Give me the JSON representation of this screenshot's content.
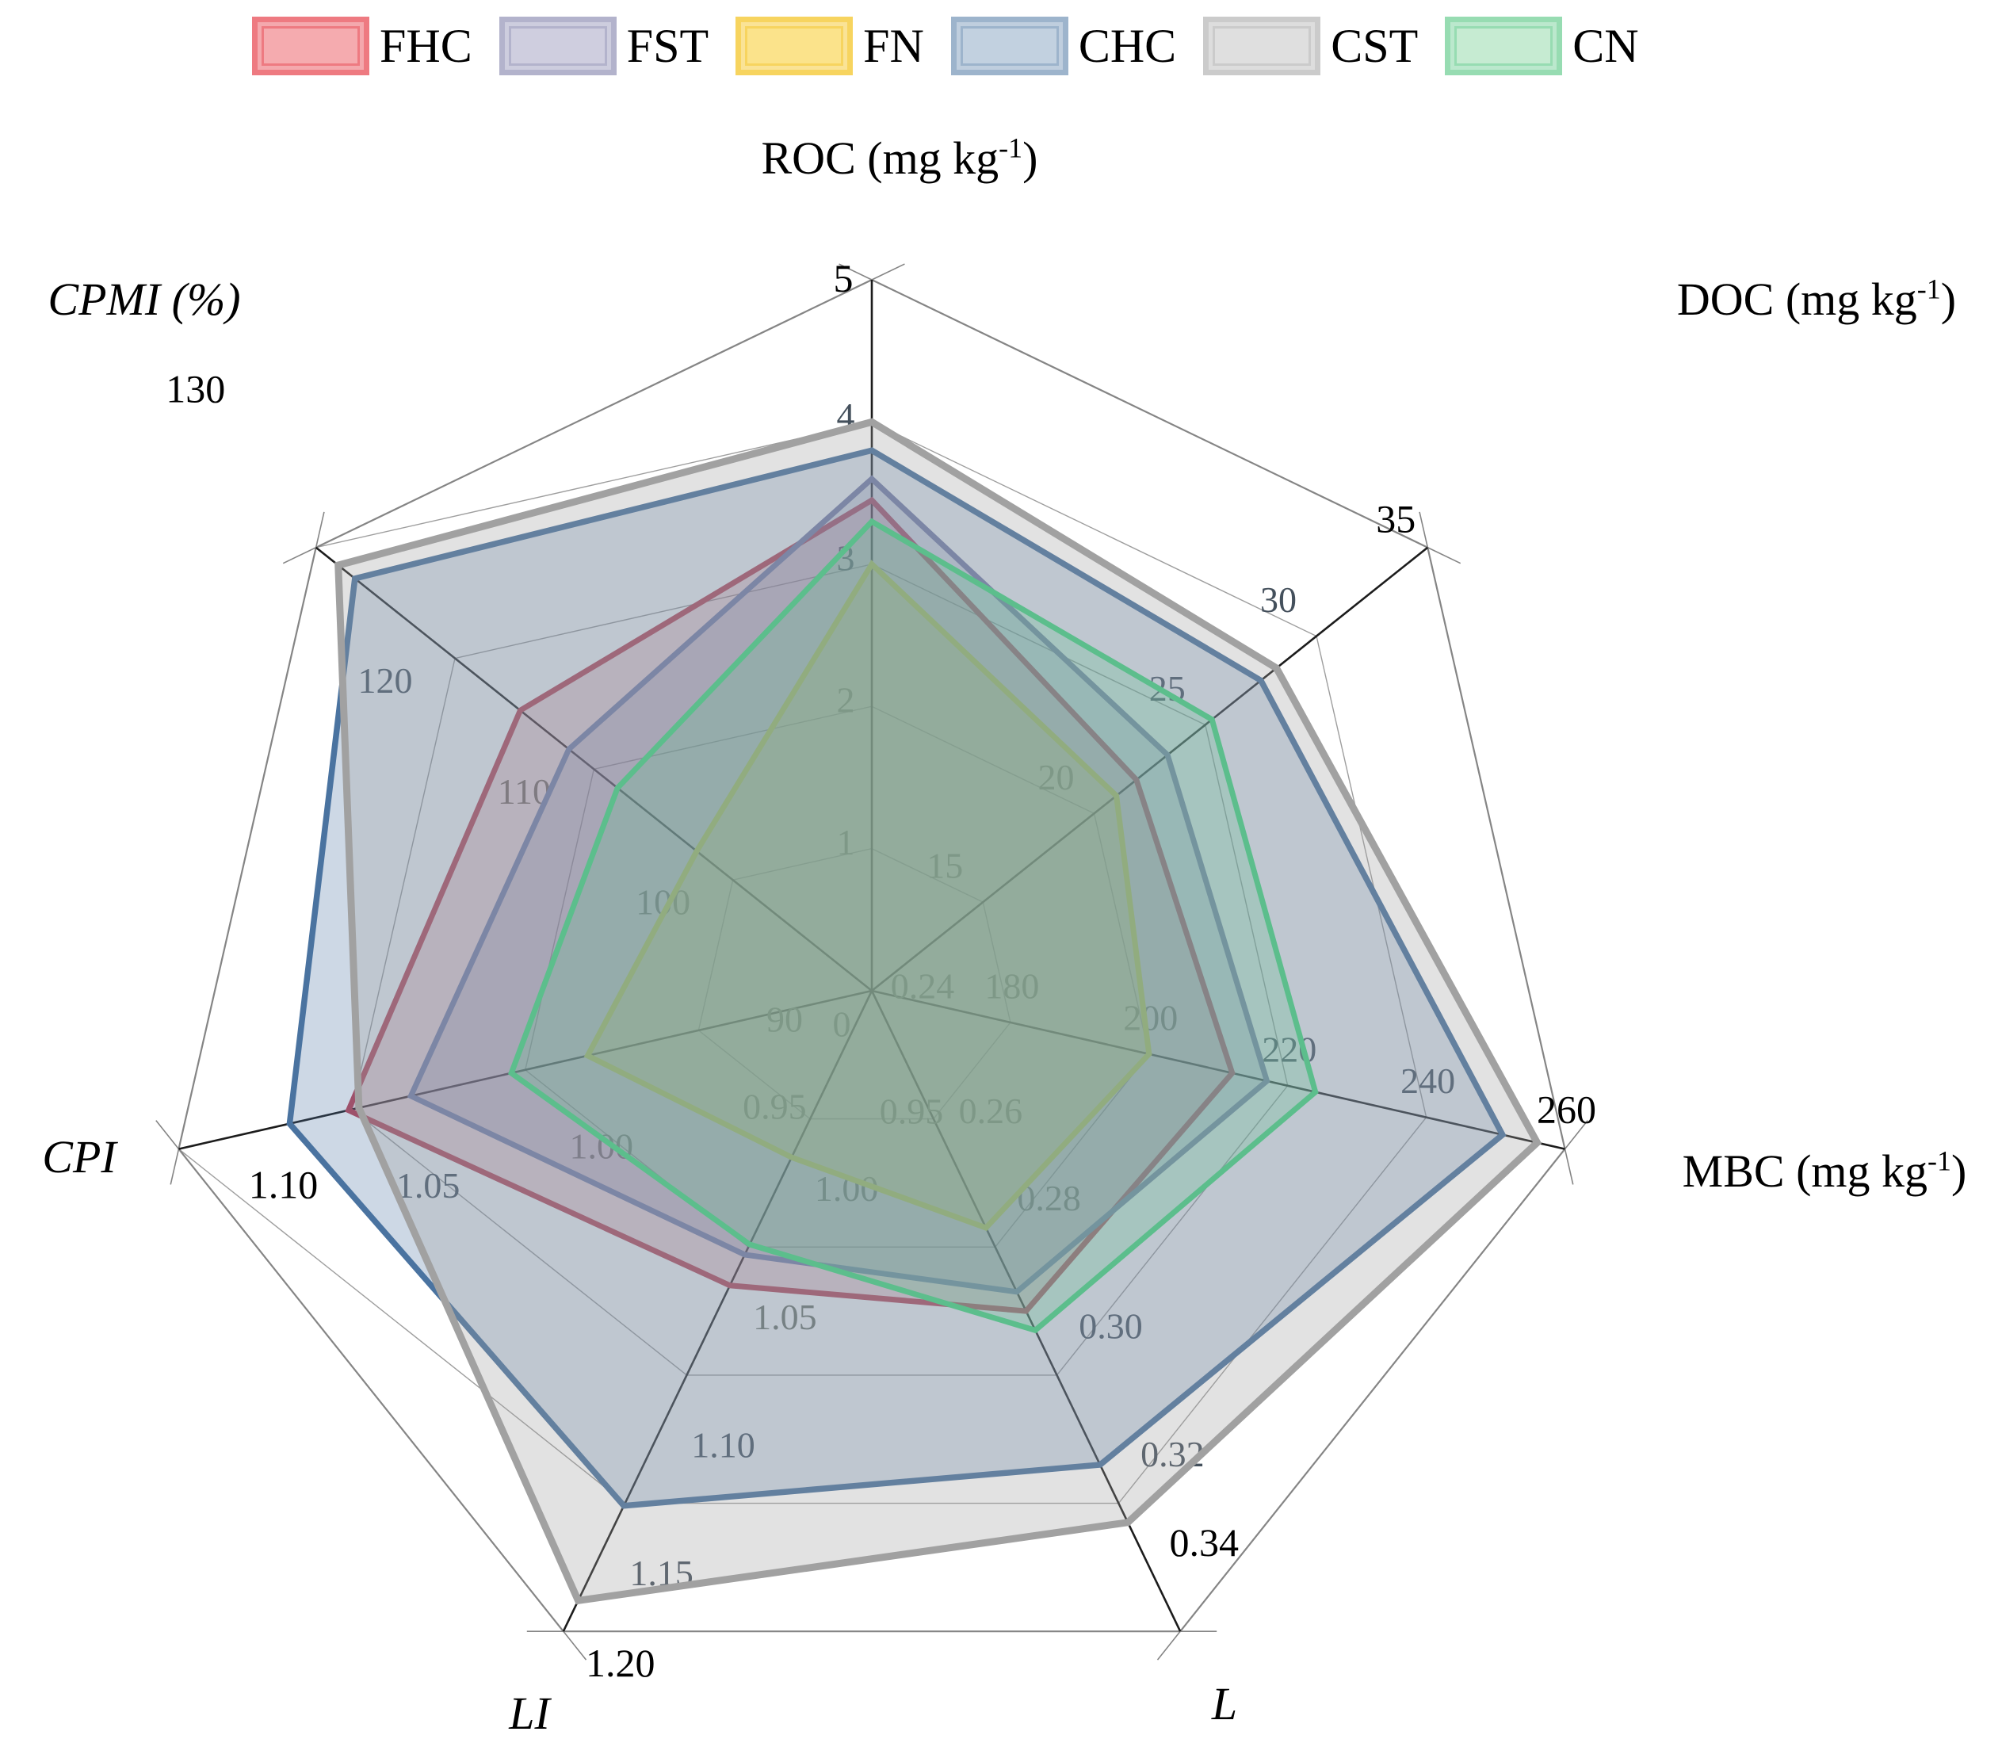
{
  "figure": {
    "kind": "radar-chart-figure",
    "background": "#ffffff"
  },
  "legend": {
    "position": "top",
    "items": [
      "FHC",
      "FST",
      "FN",
      "CHC",
      "CST",
      "CN"
    ]
  },
  "chart_data": {
    "type": "radar",
    "n_axes": 7,
    "grid": "spiderweb, 5 rings (4 rings on CPI and CPMI), black spokes",
    "axes": [
      {
        "id": "ROC",
        "title_main": "ROC (mg kg",
        "title_sup": "-1",
        "title_end": ")",
        "italic": false,
        "min": 0,
        "max": 5,
        "intervals": 5,
        "center_label": "0",
        "tick_labels": [
          "1",
          "2",
          "3",
          "4",
          "5"
        ]
      },
      {
        "id": "DOC",
        "title_main": "DOC (mg kg",
        "title_sup": "-1",
        "title_end": ")",
        "italic": false,
        "min": 10,
        "max": 35,
        "intervals": 5,
        "center_label": null,
        "tick_labels": [
          "15",
          "20",
          "25",
          "30",
          "35"
        ]
      },
      {
        "id": "MBC",
        "title_main": "MBC (mg kg",
        "title_sup": "-1",
        "title_end": ")",
        "italic": false,
        "min": 160,
        "max": 260,
        "intervals": 5,
        "center_label": null,
        "tick_labels": [
          "180",
          "200",
          "220",
          "240",
          "260"
        ]
      },
      {
        "id": "L",
        "title_main": "L",
        "title_sup": "",
        "title_end": "",
        "italic": true,
        "min": 0.24,
        "max": 0.34,
        "intervals": 5,
        "center_label": "0.24",
        "tick_labels": [
          "0.26",
          "0.28",
          "0.30",
          "0.32",
          "0.34"
        ]
      },
      {
        "id": "LI",
        "title_main": "LI",
        "title_sup": "",
        "title_end": "",
        "italic": true,
        "min": 0.95,
        "max": 1.2,
        "intervals": 5,
        "center_label": "0.95",
        "tick_labels": [
          "1.00",
          "1.05",
          "1.10",
          "1.15",
          "1.20"
        ]
      },
      {
        "id": "CPI",
        "title_main": "CPI",
        "title_sup": "",
        "title_end": "",
        "italic": true,
        "min": 0.9,
        "max": 1.1,
        "intervals": 4,
        "center_label": null,
        "tick_labels": [
          "0.95",
          "1.00",
          "1.05",
          "1.10"
        ]
      },
      {
        "id": "CPMI",
        "title_main": "CPMI (%)",
        "title_sup": "",
        "title_end": "",
        "italic": true,
        "min": 90,
        "max": 130,
        "intervals": 4,
        "center_label": "90",
        "tick_labels": [
          "100",
          "110",
          "120",
          "130"
        ]
      }
    ],
    "value_order": [
      "ROC",
      "DOC",
      "MBC",
      "L",
      "LI",
      "CPI",
      "CPMI"
    ],
    "series": [
      {
        "name": "FHC",
        "line_color": "#BE4456",
        "fill_color": "rgba(190,68,86,0.22)",
        "legend_fill": "#F5ABAF",
        "legend_border": "#EE7A81",
        "line_width": 7,
        "values": [
          3.45,
          21.9,
          212,
          0.29,
          1.065,
          1.051,
          115.3
        ]
      },
      {
        "name": "FST",
        "line_color": "#7C7EAB",
        "fill_color": "rgba(124,126,171,0.26)",
        "legend_fill": "#CFCEDF",
        "legend_border": "#B3B3CC",
        "line_width": 7,
        "values": [
          3.6,
          23.3,
          217,
          0.287,
          1.053,
          1.033,
          111.8
        ]
      },
      {
        "name": "FN",
        "line_color": "#C8BF58",
        "fill_color": "rgba(200,191,88,0.33)",
        "legend_fill": "#FBE38B",
        "legend_border": "#F7D45F",
        "line_width": 7,
        "values": [
          3.0,
          21.0,
          200,
          0.277,
          1.015,
          0.982,
          102.6
        ]
      },
      {
        "name": "CHC",
        "line_color": "#4A73A0",
        "fill_color": "rgba(74,115,160,0.28)",
        "legend_fill": "#C2D1E0",
        "legend_border": "#9DB4CC",
        "line_width": 7.5,
        "values": [
          3.8,
          27.5,
          251,
          0.314,
          1.151,
          1.068,
          127.2
        ]
      },
      {
        "name": "CST",
        "line_color": "#A1A1A1",
        "fill_color": "rgba(160,160,160,0.30)",
        "legend_fill": "#DFDFDF",
        "legend_border": "#CBCBCB",
        "line_width": 9,
        "values": [
          4.0,
          28.2,
          256,
          0.323,
          1.188,
          1.048,
          128.4
        ]
      },
      {
        "name": "CN",
        "line_color": "#5CBE8C",
        "fill_color": "rgba(92,190,140,0.25)",
        "legend_fill": "#C6EBD2",
        "legend_border": "#97DCB2",
        "line_width": 7,
        "values": [
          3.3,
          25.3,
          224,
          0.293,
          1.049,
          1.004,
          108.3
        ]
      }
    ]
  }
}
